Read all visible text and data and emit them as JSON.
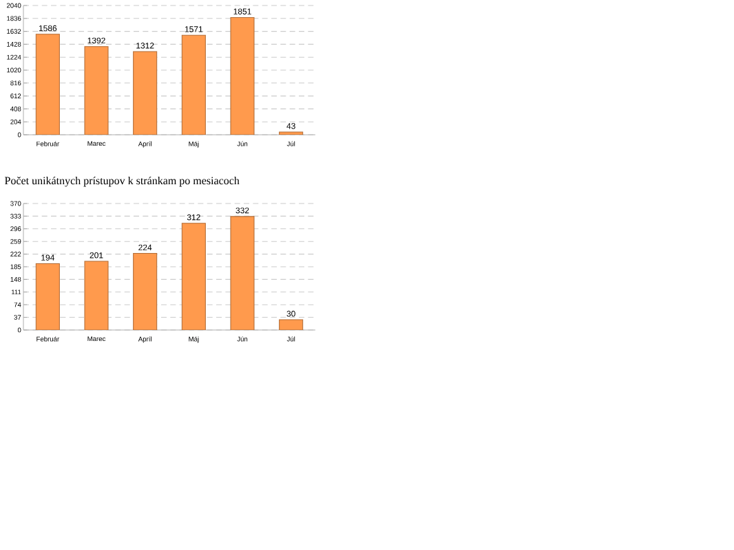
{
  "chart_data": [
    {
      "type": "bar",
      "categories": [
        "Február",
        "Marec",
        "Apríl",
        "Máj",
        "Jún",
        "Júl"
      ],
      "values": [
        1586,
        1392,
        1312,
        1571,
        1851,
        43
      ],
      "color": "#ff9a4d",
      "ylim": [
        0,
        2040
      ],
      "yticks": [
        0,
        204,
        408,
        612,
        816,
        1020,
        1224,
        1428,
        1632,
        1836,
        2040
      ],
      "grid": "y",
      "data_labels": true
    },
    {
      "type": "bar",
      "title": "Počet unikátnych prístupov k stránkam po mesiacoch",
      "categories": [
        "Február",
        "Marec",
        "Apríl",
        "Máj",
        "Jún",
        "Júl"
      ],
      "values": [
        194,
        201,
        224,
        312,
        332,
        30
      ],
      "color": "#ff9a4d",
      "ylim": [
        0,
        370
      ],
      "yticks": [
        0,
        37,
        74,
        111,
        148,
        185,
        222,
        259,
        296,
        333,
        370
      ],
      "grid": "y",
      "data_labels": true
    }
  ]
}
